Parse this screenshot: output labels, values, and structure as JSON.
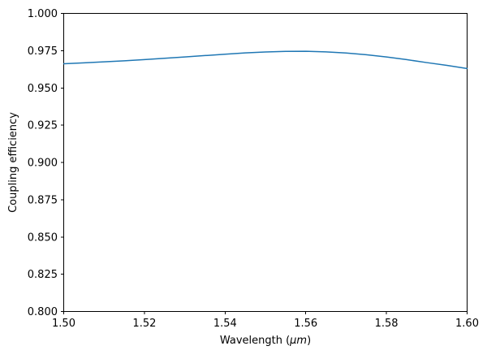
{
  "chart_data": {
    "type": "line",
    "xlabel": "Wavelength (μm)",
    "xlabel_parts": {
      "prefix": "Wavelength (",
      "unit": "μm",
      "suffix": ")"
    },
    "ylabel": "Coupling efficiency",
    "xlim": [
      1.5,
      1.6
    ],
    "ylim": [
      0.8,
      1.0
    ],
    "xtick_labels": [
      "1.50",
      "1.52",
      "1.54",
      "1.56",
      "1.58",
      "1.60"
    ],
    "ytick_labels": [
      "0.800",
      "0.825",
      "0.850",
      "0.875",
      "0.900",
      "0.925",
      "0.950",
      "0.975",
      "1.000"
    ],
    "grid": false,
    "legend": null,
    "series": [
      {
        "name": "coupling-efficiency-curve",
        "color": "#1f77b4",
        "x": [
          1.5,
          1.505,
          1.51,
          1.515,
          1.52,
          1.525,
          1.53,
          1.535,
          1.54,
          1.545,
          1.55,
          1.555,
          1.56,
          1.565,
          1.57,
          1.575,
          1.58,
          1.585,
          1.59,
          1.595,
          1.6
        ],
        "y": [
          0.9662,
          0.9668,
          0.9675,
          0.9682,
          0.969,
          0.9699,
          0.9708,
          0.9717,
          0.9726,
          0.9735,
          0.9741,
          0.9745,
          0.9746,
          0.9742,
          0.9734,
          0.9723,
          0.9708,
          0.969,
          0.967,
          0.9651,
          0.963
        ]
      }
    ],
    "colors": {
      "spine": "#000000",
      "tick_text": "#000000",
      "background": "#ffffff"
    }
  }
}
